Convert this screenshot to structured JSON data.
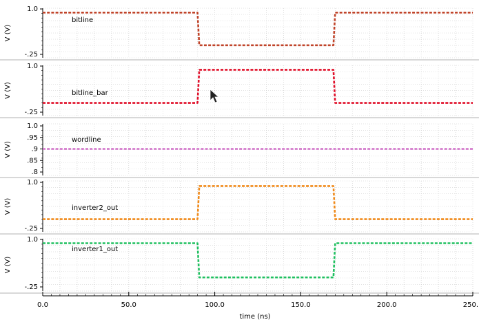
{
  "chart_data": {
    "type": "line",
    "xlabel": "time (ns)",
    "xlim": [
      0,
      250
    ],
    "x_tick_labels": [
      "0.0",
      "50.0",
      "100.0",
      "150.0",
      "200.0",
      "250."
    ],
    "x_ticks": [
      0,
      50,
      100,
      150,
      200,
      250
    ],
    "panels": [
      {
        "name": "bitline",
        "ylabel": "V (V)",
        "ylim": [
          -0.25,
          1.0
        ],
        "y_ticks": [
          1.0,
          -0.25
        ],
        "y_tick_labels": [
          "1.0",
          "-.25"
        ],
        "color": "#c0442a",
        "x": [
          0,
          90,
          91,
          169,
          170,
          250
        ],
        "y": [
          0.9,
          0.9,
          0.0,
          0.0,
          0.9,
          0.9
        ]
      },
      {
        "name": "bitline_bar",
        "ylabel": "V (V)",
        "ylim": [
          -0.25,
          1.0
        ],
        "y_ticks": [
          1.0,
          -0.25
        ],
        "y_tick_labels": [
          "1.0",
          "-.25"
        ],
        "color": "#e0102a",
        "x": [
          0,
          90,
          91,
          169,
          170,
          250
        ],
        "y": [
          0.0,
          0.0,
          0.9,
          0.9,
          0.0,
          0.0
        ]
      },
      {
        "name": "wordline",
        "ylabel": "V (V)",
        "ylim": [
          0.8,
          1.0
        ],
        "y_ticks": [
          1.0,
          0.95,
          0.9,
          0.85,
          0.8
        ],
        "y_tick_labels": [
          "1.0",
          ".95",
          ".9",
          ".85",
          ".8"
        ],
        "color": "#d070c8",
        "x": [
          0,
          250
        ],
        "y": [
          0.9,
          0.9
        ]
      },
      {
        "name": "inverter2_out",
        "ylabel": "V (V)",
        "ylim": [
          -0.25,
          1.0
        ],
        "y_ticks": [
          1.0,
          -0.25
        ],
        "y_tick_labels": [
          "1.0",
          "-.25"
        ],
        "color": "#f08a1a",
        "x": [
          0,
          90,
          91,
          169,
          170,
          250
        ],
        "y": [
          0.0,
          0.0,
          0.9,
          0.9,
          0.0,
          0.0
        ]
      },
      {
        "name": "inverter1_out",
        "ylabel": "V (V)",
        "ylim": [
          -0.25,
          1.0
        ],
        "y_ticks": [
          1.0,
          -0.25
        ],
        "y_tick_labels": [
          "1.0",
          "-.25"
        ],
        "color": "#20c060",
        "x": [
          0,
          90,
          91,
          169,
          170,
          250
        ],
        "y": [
          0.9,
          0.9,
          0.0,
          0.0,
          0.9,
          0.9
        ]
      }
    ],
    "grid": true,
    "legend": "inline-left"
  }
}
